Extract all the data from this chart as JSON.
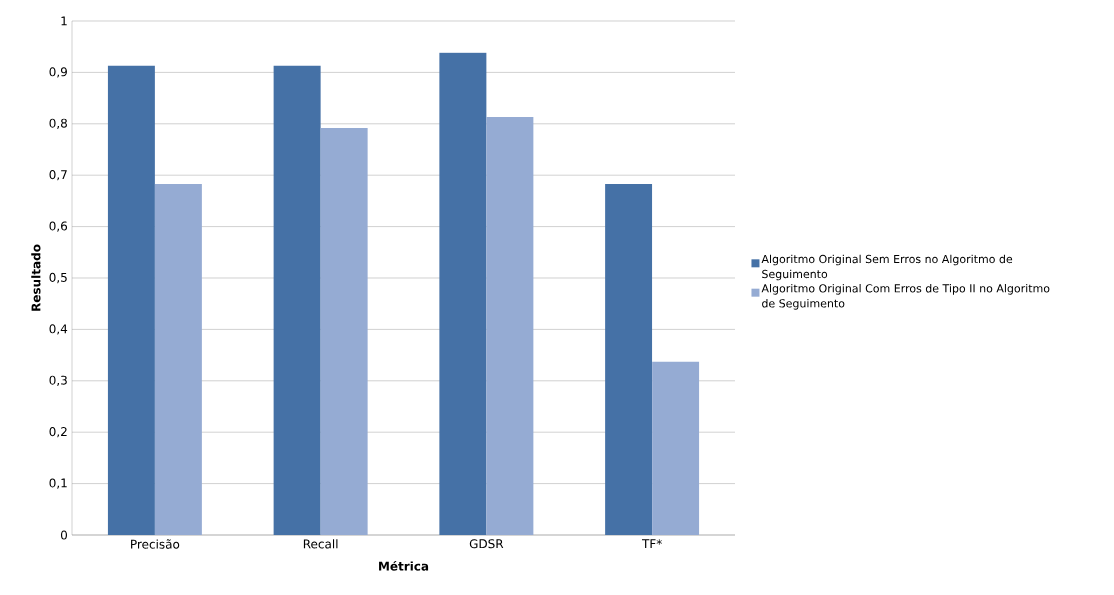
{
  "chart_data": {
    "type": "bar",
    "xlabel": "Métrica",
    "ylabel": "Resultado",
    "categories": [
      "Precisão",
      "Recall",
      "GDSR",
      "TF*"
    ],
    "series": [
      {
        "name": "Algoritmo Original Sem Erros no Algoritmo de Seguimento",
        "color": "#4571a6",
        "values": [
          0.913,
          0.913,
          0.938,
          0.683
        ]
      },
      {
        "name": "Algoritmo Original Com Erros de Tipo II no Algoritmo de Seguimento",
        "color": "#95abd3",
        "values": [
          0.683,
          0.792,
          0.813,
          0.337
        ]
      }
    ],
    "ylim": [
      0,
      1
    ],
    "yticks": [
      0,
      {
        "value": 0.1,
        "label": "0,1"
      },
      {
        "value": 0.2,
        "label": "0,2"
      },
      {
        "value": 0.3,
        "label": "0,3"
      },
      {
        "value": 0.4,
        "label": "0,4"
      },
      {
        "value": 0.5,
        "label": "0,5"
      },
      {
        "value": 0.6,
        "label": "0,6"
      },
      {
        "value": 0.7,
        "label": "0,7"
      },
      {
        "value": 0.8,
        "label": "0,8"
      },
      {
        "value": 0.9,
        "label": "0,9"
      },
      1
    ],
    "grid": "y",
    "legend": "right"
  }
}
